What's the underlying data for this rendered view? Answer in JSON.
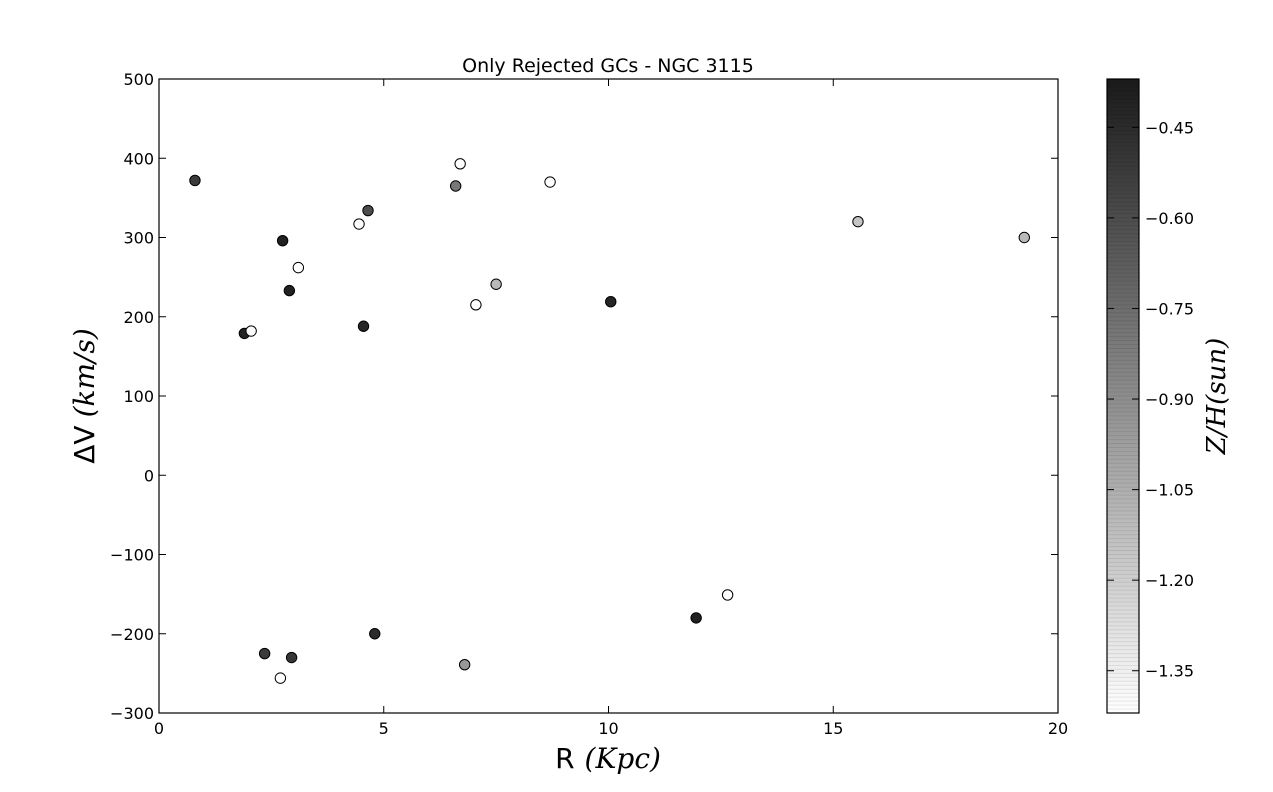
{
  "chart_data": {
    "type": "scatter",
    "title": "Only Rejected GCs - NGC 3115",
    "xlabel": {
      "main": "R",
      "unit": "(Kpc)"
    },
    "ylabel": {
      "main": "ΔV",
      "unit": "(km/s)"
    },
    "xlim": [
      0,
      20
    ],
    "ylim": [
      -300,
      500
    ],
    "x_ticks": [
      0,
      5,
      10,
      15,
      20
    ],
    "y_ticks": [
      -300,
      -200,
      -100,
      0,
      100,
      200,
      300,
      400,
      500
    ],
    "grid": false,
    "colorbar": {
      "label": "Z/H(sun)",
      "range": [
        -1.42,
        -0.37
      ],
      "ticks": [
        -0.45,
        -0.6,
        -0.75,
        -0.9,
        -1.05,
        -1.2,
        -1.35
      ],
      "tick_labels": [
        "−0.45",
        "−0.60",
        "−0.75",
        "−0.90",
        "−1.05",
        "−1.20",
        "−1.35"
      ],
      "colormap": "Greys",
      "color_low": "#ffffff",
      "color_high": "#1a1a1a"
    },
    "points": [
      {
        "x": 0.8,
        "y": 372,
        "z": -0.52
      },
      {
        "x": 1.9,
        "y": 179,
        "z": -0.42
      },
      {
        "x": 2.05,
        "y": 182,
        "z": -1.4
      },
      {
        "x": 2.35,
        "y": -225,
        "z": -0.52
      },
      {
        "x": 2.7,
        "y": -256,
        "z": -1.42
      },
      {
        "x": 2.75,
        "y": 296,
        "z": -0.4
      },
      {
        "x": 2.9,
        "y": 233,
        "z": -0.4
      },
      {
        "x": 2.95,
        "y": -230,
        "z": -0.5
      },
      {
        "x": 3.1,
        "y": 262,
        "z": -1.42
      },
      {
        "x": 4.45,
        "y": 317,
        "z": -1.4
      },
      {
        "x": 4.55,
        "y": 188,
        "z": -0.42
      },
      {
        "x": 4.65,
        "y": 334,
        "z": -0.6
      },
      {
        "x": 4.8,
        "y": -200,
        "z": -0.45
      },
      {
        "x": 6.6,
        "y": 365,
        "z": -0.8
      },
      {
        "x": 6.7,
        "y": 393,
        "z": -1.42
      },
      {
        "x": 6.8,
        "y": -239,
        "z": -0.95
      },
      {
        "x": 7.05,
        "y": 215,
        "z": -1.42
      },
      {
        "x": 7.5,
        "y": 241,
        "z": -1.1
      },
      {
        "x": 8.7,
        "y": 370,
        "z": -1.42
      },
      {
        "x": 10.05,
        "y": 219,
        "z": -0.42
      },
      {
        "x": 11.95,
        "y": -180,
        "z": -0.4
      },
      {
        "x": 12.65,
        "y": -151,
        "z": -1.42
      },
      {
        "x": 15.55,
        "y": 320,
        "z": -1.15
      },
      {
        "x": 19.25,
        "y": 300,
        "z": -1.1
      }
    ]
  }
}
